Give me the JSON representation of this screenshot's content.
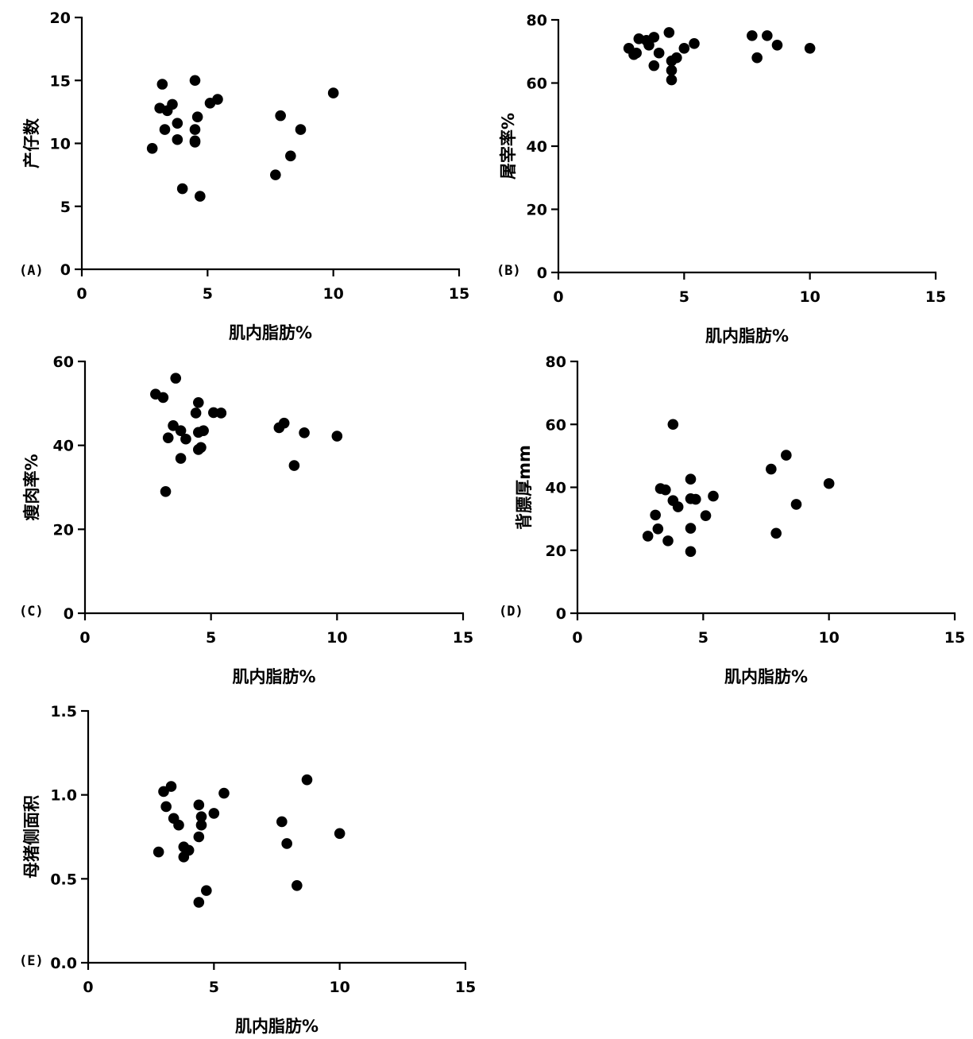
{
  "chart_data": [
    {
      "type": "scatter",
      "panel_label": "(A)",
      "xlabel": "肌内脂肪%",
      "ylabel": "产仔数",
      "xlim": [
        0,
        15
      ],
      "ylim": [
        0,
        20
      ],
      "xticks": [
        "0",
        "5",
        "10",
        "15"
      ],
      "yticks": [
        "0",
        "5",
        "10",
        "15",
        "20"
      ],
      "points": [
        [
          2.8,
          9.6
        ],
        [
          3.1,
          12.8
        ],
        [
          3.2,
          14.7
        ],
        [
          3.3,
          11.1
        ],
        [
          3.4,
          12.6
        ],
        [
          3.6,
          13.1
        ],
        [
          3.8,
          11.6
        ],
        [
          3.8,
          10.3
        ],
        [
          4.0,
          6.4
        ],
        [
          4.5,
          15.0
        ],
        [
          4.5,
          11.1
        ],
        [
          4.5,
          10.2
        ],
        [
          4.5,
          10.1
        ],
        [
          4.6,
          12.1
        ],
        [
          4.7,
          5.8
        ],
        [
          5.1,
          13.2
        ],
        [
          5.4,
          13.5
        ],
        [
          7.7,
          7.5
        ],
        [
          7.9,
          12.2
        ],
        [
          8.3,
          9.0
        ],
        [
          8.7,
          11.1
        ],
        [
          10.0,
          14.0
        ]
      ]
    },
    {
      "type": "scatter",
      "panel_label": "(B)",
      "xlabel": "肌内脂肪%",
      "ylabel": "屠宰率%",
      "xlim": [
        0,
        15
      ],
      "ylim": [
        0,
        80
      ],
      "xticks": [
        "0",
        "5",
        "10",
        "15"
      ],
      "yticks": [
        "0",
        "20",
        "40",
        "60",
        "80"
      ],
      "points": [
        [
          2.8,
          71
        ],
        [
          3.0,
          69
        ],
        [
          3.1,
          69.5
        ],
        [
          3.2,
          74
        ],
        [
          3.5,
          73.5
        ],
        [
          3.6,
          72
        ],
        [
          3.8,
          74.5
        ],
        [
          3.8,
          65.5
        ],
        [
          4.0,
          69.5
        ],
        [
          4.4,
          76
        ],
        [
          4.5,
          67
        ],
        [
          4.5,
          64
        ],
        [
          4.5,
          61
        ],
        [
          4.7,
          68
        ],
        [
          5.0,
          71
        ],
        [
          5.4,
          72.5
        ],
        [
          7.7,
          75
        ],
        [
          7.9,
          68
        ],
        [
          8.3,
          75
        ],
        [
          8.7,
          72
        ],
        [
          10.0,
          71
        ]
      ]
    },
    {
      "type": "scatter",
      "panel_label": "(C)",
      "xlabel": "肌内脂肪%",
      "ylabel": "瘦肉率%",
      "xlim": [
        0,
        15
      ],
      "ylim": [
        0,
        60
      ],
      "xticks": [
        "0",
        "5",
        "10",
        "15"
      ],
      "yticks": [
        "0",
        "20",
        "40",
        "60"
      ],
      "points": [
        [
          2.8,
          52.2
        ],
        [
          3.1,
          51.4
        ],
        [
          3.2,
          29.0
        ],
        [
          3.3,
          41.8
        ],
        [
          3.5,
          44.7
        ],
        [
          3.6,
          56.0
        ],
        [
          3.8,
          36.9
        ],
        [
          3.8,
          43.5
        ],
        [
          4.0,
          41.5
        ],
        [
          4.4,
          47.7
        ],
        [
          4.5,
          50.2
        ],
        [
          4.5,
          43.1
        ],
        [
          4.5,
          39.0
        ],
        [
          4.6,
          39.5
        ],
        [
          4.7,
          43.5
        ],
        [
          5.1,
          47.8
        ],
        [
          5.4,
          47.7
        ],
        [
          7.7,
          44.2
        ],
        [
          7.9,
          45.3
        ],
        [
          8.3,
          35.2
        ],
        [
          8.7,
          43.0
        ],
        [
          10.0,
          42.2
        ]
      ]
    },
    {
      "type": "scatter",
      "panel_label": "(D)",
      "xlabel": "肌内脂肪%",
      "ylabel": "背膘厚mm",
      "xlim": [
        0,
        15
      ],
      "ylim": [
        0,
        80
      ],
      "xticks": [
        "0",
        "5",
        "10",
        "15"
      ],
      "yticks": [
        "0",
        "20",
        "40",
        "60",
        "80"
      ],
      "points": [
        [
          2.8,
          24.5
        ],
        [
          3.1,
          31.2
        ],
        [
          3.2,
          26.8
        ],
        [
          3.3,
          39.6
        ],
        [
          3.5,
          39.2
        ],
        [
          3.6,
          23.0
        ],
        [
          3.8,
          60.0
        ],
        [
          3.8,
          35.8
        ],
        [
          4.0,
          33.8
        ],
        [
          4.5,
          42.6
        ],
        [
          4.5,
          36.4
        ],
        [
          4.5,
          27.0
        ],
        [
          4.5,
          19.6
        ],
        [
          4.7,
          36.2
        ],
        [
          5.1,
          31.0
        ],
        [
          5.4,
          37.2
        ],
        [
          7.7,
          45.8
        ],
        [
          7.9,
          25.4
        ],
        [
          8.3,
          50.2
        ],
        [
          8.7,
          34.6
        ],
        [
          10.0,
          41.2
        ]
      ]
    },
    {
      "type": "scatter",
      "panel_label": "(E)",
      "xlabel": "肌内脂肪%",
      "ylabel": "母猪侧面积",
      "xlim": [
        0,
        15
      ],
      "ylim": [
        0,
        1.5
      ],
      "xticks": [
        "0",
        "5",
        "10",
        "15"
      ],
      "yticks": [
        "0.0",
        "0.5",
        "1.0",
        "1.5"
      ],
      "points": [
        [
          2.8,
          0.66
        ],
        [
          3.0,
          1.02
        ],
        [
          3.1,
          0.93
        ],
        [
          3.3,
          1.05
        ],
        [
          3.4,
          0.86
        ],
        [
          3.6,
          0.82
        ],
        [
          3.8,
          0.69
        ],
        [
          3.8,
          0.63
        ],
        [
          4.0,
          0.67
        ],
        [
          4.4,
          0.94
        ],
        [
          4.4,
          0.75
        ],
        [
          4.4,
          0.36
        ],
        [
          4.5,
          0.82
        ],
        [
          4.5,
          0.87
        ],
        [
          4.7,
          0.43
        ],
        [
          5.0,
          0.89
        ],
        [
          5.4,
          1.01
        ],
        [
          7.7,
          0.84
        ],
        [
          7.9,
          0.71
        ],
        [
          8.3,
          0.46
        ],
        [
          8.7,
          1.09
        ],
        [
          10.0,
          0.77
        ]
      ]
    }
  ]
}
